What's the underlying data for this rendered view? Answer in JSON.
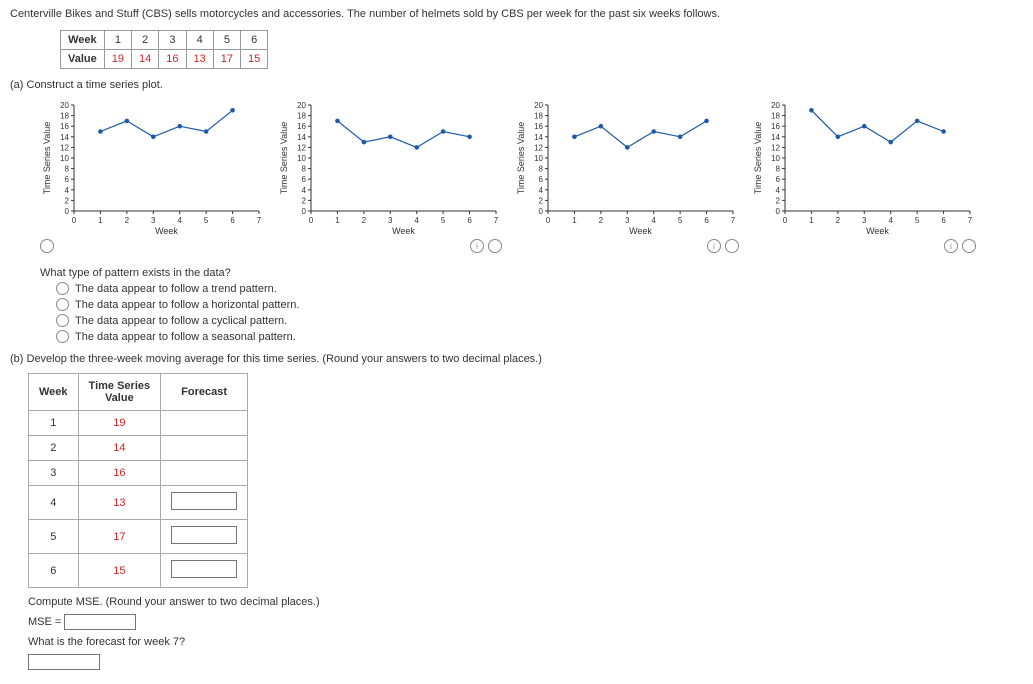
{
  "intro_text": "Centerville Bikes and Stuff (CBS) sells motorcycles and accessories. The number of helmets sold by CBS per week for the past six weeks follows.",
  "data_table": {
    "row_labels": [
      "Week",
      "Value"
    ],
    "weeks": [
      "1",
      "2",
      "3",
      "4",
      "5",
      "6"
    ],
    "values": [
      "19",
      "14",
      "16",
      "13",
      "17",
      "15"
    ]
  },
  "part_a_label": "(a)   Construct a time series plot.",
  "charts": {
    "y_label": "Time Series Value",
    "x_label": "Week",
    "y_ticks": [
      0,
      2,
      4,
      6,
      8,
      10,
      12,
      14,
      16,
      18,
      20
    ],
    "x_ticks": [
      0,
      1,
      2,
      3,
      4,
      5,
      6,
      7
    ],
    "xlim": [
      0,
      7
    ],
    "ylim": [
      0,
      20
    ],
    "point_color": "#1e5aa8",
    "line_color": "#1e5aa8",
    "axis_color": "#333333",
    "tick_fontsize": 8,
    "label_fontsize": 9,
    "marker_radius": 2.3,
    "series": [
      {
        "points": [
          [
            1,
            15
          ],
          [
            2,
            17
          ],
          [
            3,
            14
          ],
          [
            4,
            16
          ],
          [
            5,
            15
          ],
          [
            6,
            19
          ]
        ],
        "radio_side": "left"
      },
      {
        "points": [
          [
            1,
            17
          ],
          [
            2,
            13
          ],
          [
            3,
            14
          ],
          [
            4,
            12
          ],
          [
            5,
            15
          ],
          [
            6,
            14
          ]
        ],
        "radio_side": "right"
      },
      {
        "points": [
          [
            1,
            14
          ],
          [
            2,
            16
          ],
          [
            3,
            12
          ],
          [
            4,
            15
          ],
          [
            5,
            14
          ],
          [
            6,
            17
          ]
        ],
        "radio_side": "right"
      },
      {
        "points": [
          [
            1,
            19
          ],
          [
            2,
            14
          ],
          [
            3,
            16
          ],
          [
            4,
            13
          ],
          [
            5,
            17
          ],
          [
            6,
            15
          ]
        ],
        "radio_side": "right"
      }
    ]
  },
  "pattern_q": {
    "question": "What type of pattern exists in the data?",
    "options": [
      "The data appear to follow a trend pattern.",
      "The data appear to follow a horizontal pattern.",
      "The data appear to follow a cyclical pattern.",
      "The data appear to follow a seasonal pattern."
    ]
  },
  "part_b_label": "(b)   Develop the three-week moving average for this time series. (Round your answers to two decimal places.)",
  "forecast_table": {
    "headers": [
      "Week",
      "Time Series\nValue",
      "Forecast"
    ],
    "rows": [
      {
        "week": "1",
        "value": "19",
        "has_input": false
      },
      {
        "week": "2",
        "value": "14",
        "has_input": false
      },
      {
        "week": "3",
        "value": "16",
        "has_input": false
      },
      {
        "week": "4",
        "value": "13",
        "has_input": true
      },
      {
        "week": "5",
        "value": "17",
        "has_input": true
      },
      {
        "week": "6",
        "value": "15",
        "has_input": true
      }
    ]
  },
  "mse_label_1": "Compute MSE. (Round your answer to two decimal places.)",
  "mse_label_2": "MSE =",
  "week7_label": "What is the forecast for week 7?"
}
